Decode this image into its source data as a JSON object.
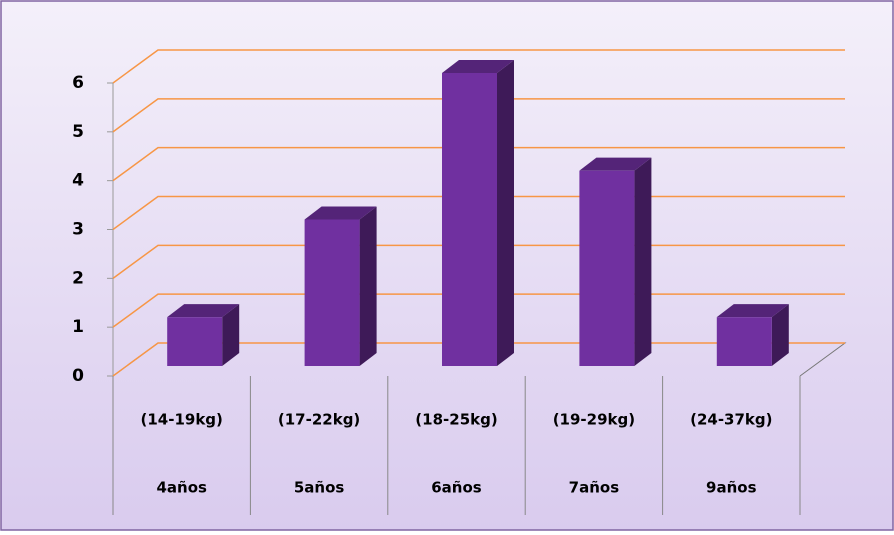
{
  "chart_data": {
    "type": "bar3d",
    "categories": [
      "(14-19kg)",
      "(17-22kg)",
      "(18-25kg)",
      "(19-29kg)",
      "(24-37kg)"
    ],
    "category_groups": [
      "4años",
      "5años",
      "6años",
      "7años",
      "9años"
    ],
    "values": [
      1,
      3,
      6,
      4,
      1
    ],
    "color": "#7030a0",
    "ylim": [
      0,
      6
    ],
    "yticks": [
      0,
      1,
      2,
      3,
      4,
      5,
      6
    ],
    "grid": true,
    "grid_color": "#f79646"
  }
}
